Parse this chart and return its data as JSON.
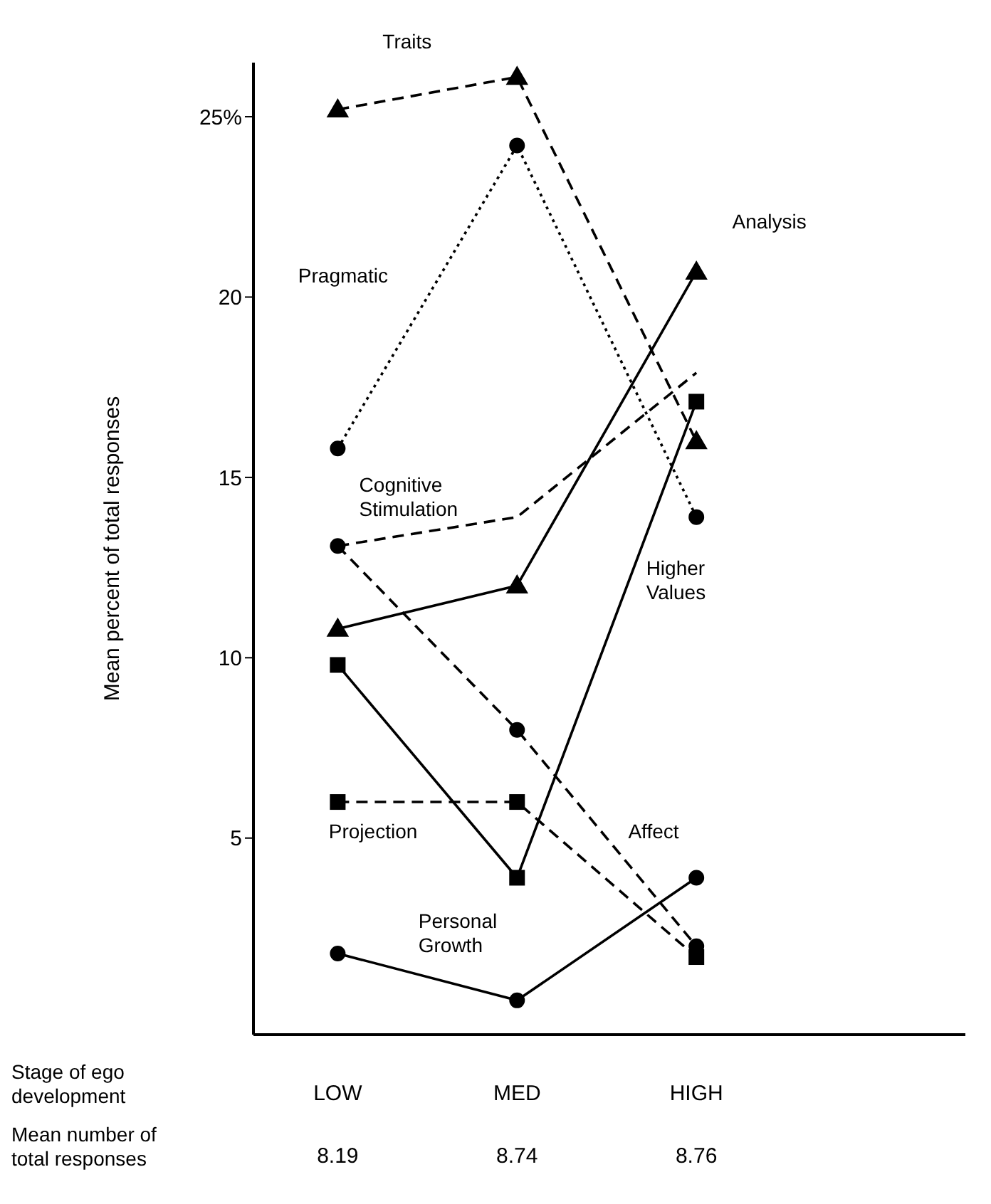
{
  "chart_data": {
    "type": "line",
    "xlabel": "Stage of ego development",
    "ylabel": "Mean percent of total responses",
    "categories": [
      "LOW",
      "MED",
      "HIGH"
    ],
    "ylim": [
      -0.45,
      26.5
    ],
    "yticks": [
      5,
      10,
      15,
      20,
      {
        "value": 25,
        "label": "25%"
      }
    ],
    "series": [
      {
        "name": "Traits",
        "color": "#000000",
        "marker": "triangle",
        "line_style": "dashed",
        "values": [
          25.2,
          26.1,
          16.0
        ]
      },
      {
        "name": "Pragmatic",
        "color": "#000000",
        "marker": "circle",
        "line_style": "dotted",
        "values": [
          15.8,
          24.2,
          13.9
        ]
      },
      {
        "name": "Cognitive Stimulation",
        "color": "#000000",
        "marker": "none",
        "line_style": "dashed",
        "values": [
          13.1,
          13.9,
          17.9
        ]
      },
      {
        "name": "Analysis",
        "color": "#000000",
        "marker": "triangle",
        "line_style": "solid",
        "values": [
          10.8,
          12.0,
          20.7
        ]
      },
      {
        "name": "Higher Values",
        "color": "#000000",
        "marker": "square",
        "line_style": "solid",
        "values": [
          9.8,
          3.9,
          17.1
        ]
      },
      {
        "name": "Affect",
        "color": "#000000",
        "marker": "circle",
        "line_style": "dashed",
        "values": [
          13.1,
          8.0,
          2.0
        ]
      },
      {
        "name": "Projection",
        "color": "#000000",
        "marker": "square",
        "line_style": "dashed",
        "values": [
          6.0,
          6.0,
          1.7
        ]
      },
      {
        "name": "Personal Growth",
        "color": "#000000",
        "marker": "circle",
        "line_style": "solid",
        "values": [
          1.8,
          0.5,
          3.9
        ]
      }
    ],
    "annotations": [
      "Mean number of total responses",
      "8.19",
      "8.74",
      "8.76"
    ]
  }
}
